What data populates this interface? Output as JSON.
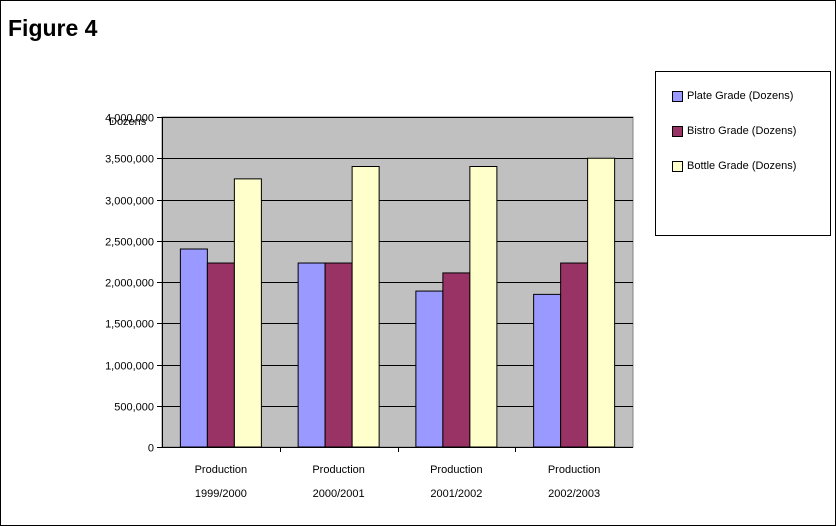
{
  "figure": {
    "label": "Figure 4"
  },
  "chart_data": {
    "type": "bar",
    "title": "",
    "ylabel": "Dozens",
    "xlabel": "",
    "ylim": [
      0,
      4000000
    ],
    "yticks": [
      0,
      500000,
      1000000,
      1500000,
      2000000,
      2500000,
      3000000,
      3500000,
      4000000
    ],
    "ytick_labels": [
      "0",
      "500,000",
      "1,000,000",
      "1,500,000",
      "2,000,000",
      "2,500,000",
      "3,000,000",
      "3,500,000",
      "4,000,000"
    ],
    "categories": [
      [
        "Production",
        "1999/2000"
      ],
      [
        "Production",
        "2000/2001"
      ],
      [
        "Production",
        "2001/2002"
      ],
      [
        "Production",
        "2002/2003"
      ]
    ],
    "grid": true,
    "legend_placement": "right",
    "plot_background": "#C0C0C0",
    "series": [
      {
        "name": "Plate Grade (Dozens)",
        "color": "#9999FF",
        "values": [
          2400000,
          2230000,
          1890000,
          1850000
        ]
      },
      {
        "name": "Bistro Grade (Dozens)",
        "color": "#993366",
        "values": [
          2230000,
          2230000,
          2110000,
          2230000
        ]
      },
      {
        "name": "Bottle Grade (Dozens)",
        "color": "#FFFFCC",
        "values": [
          3250000,
          3400000,
          3400000,
          3500000
        ]
      }
    ]
  }
}
